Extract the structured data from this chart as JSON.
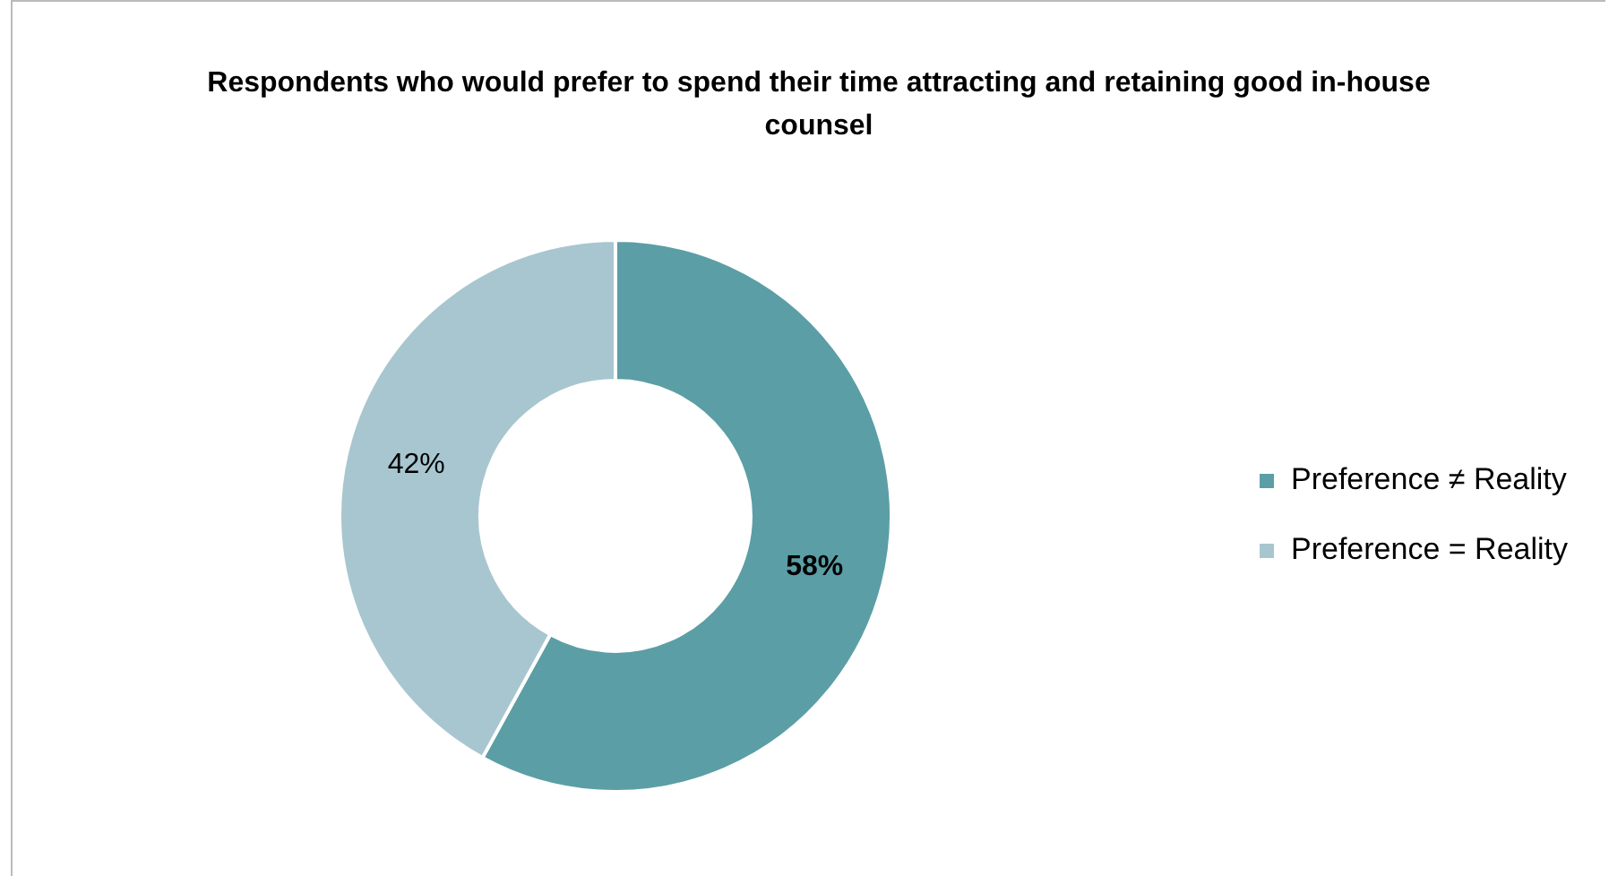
{
  "chart_data": {
    "type": "donut",
    "title": "Respondents who would prefer to spend their time attracting and retaining good in-house counsel",
    "categories": [
      "Preference ≠ Reality",
      "Preference = Reality"
    ],
    "values": [
      58,
      42
    ],
    "colors": [
      "#5b9ea6",
      "#a8c6cf"
    ],
    "value_labels": [
      "58%",
      "42%"
    ],
    "legend": "right"
  }
}
